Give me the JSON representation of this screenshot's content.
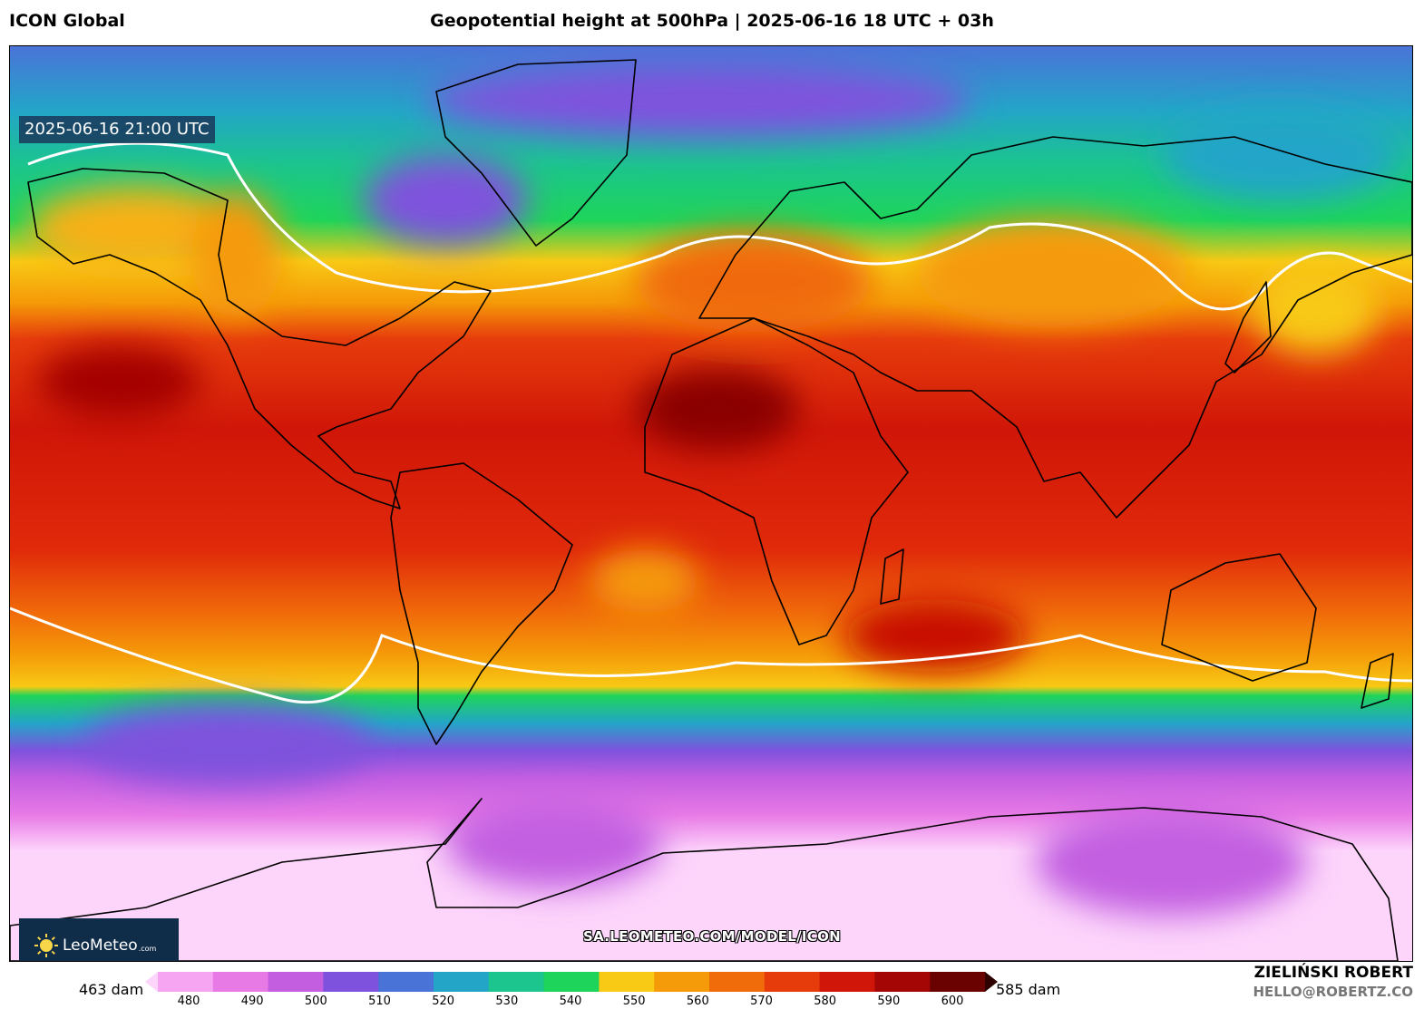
{
  "header": {
    "model": "ICON Global",
    "title": "Geopotential height at 500hPa | 2025-06-16 18 UTC + 03h"
  },
  "map": {
    "valid_time": "2025-06-16 21:00 UTC",
    "field": "geopotential height 500 hPa",
    "projection": "equirectangular global"
  },
  "logo": {
    "name": "LeoMeteo",
    "suffix": ".com",
    "icon": "sun-icon"
  },
  "watermark": {
    "url": "SA.LEOMETEO.COM/MODEL/ICON"
  },
  "colorbar": {
    "min_label": "463 dam",
    "max_label": "585 dam",
    "ticks": [
      "480",
      "490",
      "500",
      "510",
      "520",
      "530",
      "540",
      "550",
      "560",
      "570",
      "580",
      "590",
      "600"
    ],
    "colors": [
      "#fdd5fb",
      "#f5a5f2",
      "#e87ae6",
      "#c35ee1",
      "#7f52dd",
      "#4a73d8",
      "#23a5c8",
      "#1bc58d",
      "#1fd45a",
      "#f8c915",
      "#f59a08",
      "#f06b0a",
      "#e63c0c",
      "#d01608",
      "#a40505",
      "#6a0202",
      "#2e0000"
    ]
  },
  "credits": {
    "author": "ZIELIŃSKI ROBERT",
    "email": "HELLO@ROBERTZ.CO"
  }
}
